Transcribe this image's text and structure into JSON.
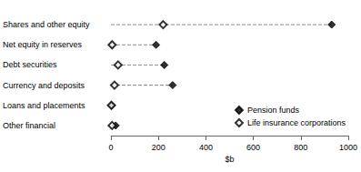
{
  "chart_data": {
    "type": "scatter",
    "orientation": "horizontal",
    "xlabel": "$b",
    "categories": [
      "Shares and other equity",
      "Net equity in reserves",
      "Debt securities",
      "Currency and deposits",
      "Loans and placements",
      "Other financial"
    ],
    "series": [
      {
        "name": "Pension funds",
        "color": "#000000",
        "marker": "diamond",
        "values": [
          930,
          190,
          225,
          260,
          3,
          20
        ]
      },
      {
        "name": "Life insurance corporations",
        "color": "#000000",
        "marker": "open_diamond",
        "values": [
          220,
          5,
          30,
          15,
          2,
          5
        ]
      }
    ],
    "xlim": [
      0,
      1000
    ],
    "xticks": [
      0,
      200,
      400,
      600,
      800,
      1000
    ],
    "grid": false,
    "legend": "lower right",
    "line_style": "dashed"
  }
}
